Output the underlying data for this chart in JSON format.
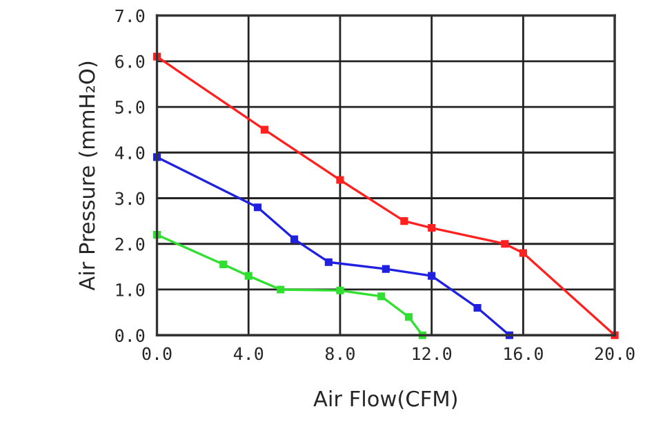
{
  "chart_data": {
    "type": "line",
    "xlabel": "Air Flow(CFM)",
    "ylabel": "Air Pressure (mmH₂O)",
    "xlim": [
      0,
      20
    ],
    "ylim": [
      0,
      7
    ],
    "xticks": [
      {
        "value": 0,
        "label": "0.0"
      },
      {
        "value": 4,
        "label": "4.0"
      },
      {
        "value": 8,
        "label": "8.0"
      },
      {
        "value": 12,
        "label": "12.0"
      },
      {
        "value": 16,
        "label": "16.0"
      },
      {
        "value": 20,
        "label": "20.0"
      }
    ],
    "yticks": [
      {
        "value": 0,
        "label": "0.0"
      },
      {
        "value": 1,
        "label": "1.0"
      },
      {
        "value": 2,
        "label": "2.0"
      },
      {
        "value": 3,
        "label": "3.0"
      },
      {
        "value": 4,
        "label": "4.0"
      },
      {
        "value": 5,
        "label": "5.0"
      },
      {
        "value": 6,
        "label": "6.0"
      },
      {
        "value": 7,
        "label": "7.0"
      }
    ],
    "grid": true,
    "marker": "square",
    "line_style": "solid",
    "series": [
      {
        "color": "#ff2020",
        "x": [
          0,
          4.7,
          8,
          10.8,
          12,
          15.2,
          16,
          20
        ],
        "values": [
          6.1,
          4.5,
          3.4,
          2.5,
          2.35,
          2.0,
          1.8,
          0
        ]
      },
      {
        "color": "#2020e0",
        "x": [
          0,
          4.4,
          6,
          7.5,
          10,
          12,
          14,
          15.4
        ],
        "values": [
          3.9,
          2.8,
          2.1,
          1.6,
          1.45,
          1.3,
          0.6,
          0
        ]
      },
      {
        "color": "#30e030",
        "x": [
          0,
          2.9,
          4,
          5.4,
          8,
          9.8,
          11,
          11.6
        ],
        "values": [
          2.2,
          1.55,
          1.3,
          1.0,
          0.98,
          0.85,
          0.4,
          0
        ]
      }
    ]
  }
}
